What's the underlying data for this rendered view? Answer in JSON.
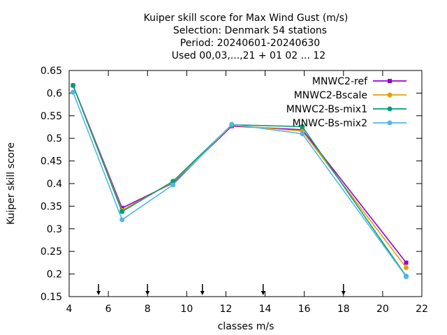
{
  "chart_data": {
    "type": "line",
    "title_lines": [
      "Kuiper skill score  for Max Wind Gust (m/s)",
      "Selection: Denmark     54 stations",
      "Period: 20240601-20240630",
      "Used 00,03,...,21 + 01 02 ... 12"
    ],
    "xlabel": "classes m/s",
    "ylabel": "Kuiper skill score",
    "xlim": [
      4,
      22
    ],
    "ylim": [
      0.15,
      0.65
    ],
    "x_ticks": [
      4,
      6,
      8,
      10,
      12,
      14,
      16,
      18,
      20,
      22
    ],
    "y_ticks": [
      "0.15",
      "0.2",
      "0.25",
      "0.3",
      "0.35",
      "0.4",
      "0.45",
      "0.5",
      "0.55",
      "0.6",
      "0.65"
    ],
    "class_markers": [
      5.5,
      8.0,
      10.8,
      13.9,
      18.0
    ],
    "grid": false,
    "legend_position": "top-right",
    "x": [
      4.2,
      6.7,
      9.3,
      12.3,
      15.9,
      21.2
    ],
    "series": [
      {
        "name": "MNWC2-ref",
        "color": "#9400d3",
        "values": [
          0.617,
          0.346,
          0.401,
          0.527,
          0.519,
          0.225
        ]
      },
      {
        "name": "MNWC2-Bscale",
        "color": "#e69f00",
        "values": [
          0.617,
          0.341,
          0.403,
          0.529,
          0.516,
          0.214
        ]
      },
      {
        "name": "MNWC2-Bs-mix1",
        "color": "#009e73",
        "values": [
          0.617,
          0.338,
          0.405,
          0.53,
          0.526,
          0.195
        ]
      },
      {
        "name": "MNWC-Bs-mix2",
        "color": "#56b4e9",
        "values": [
          0.602,
          0.32,
          0.397,
          0.531,
          0.51,
          0.194
        ]
      }
    ]
  }
}
